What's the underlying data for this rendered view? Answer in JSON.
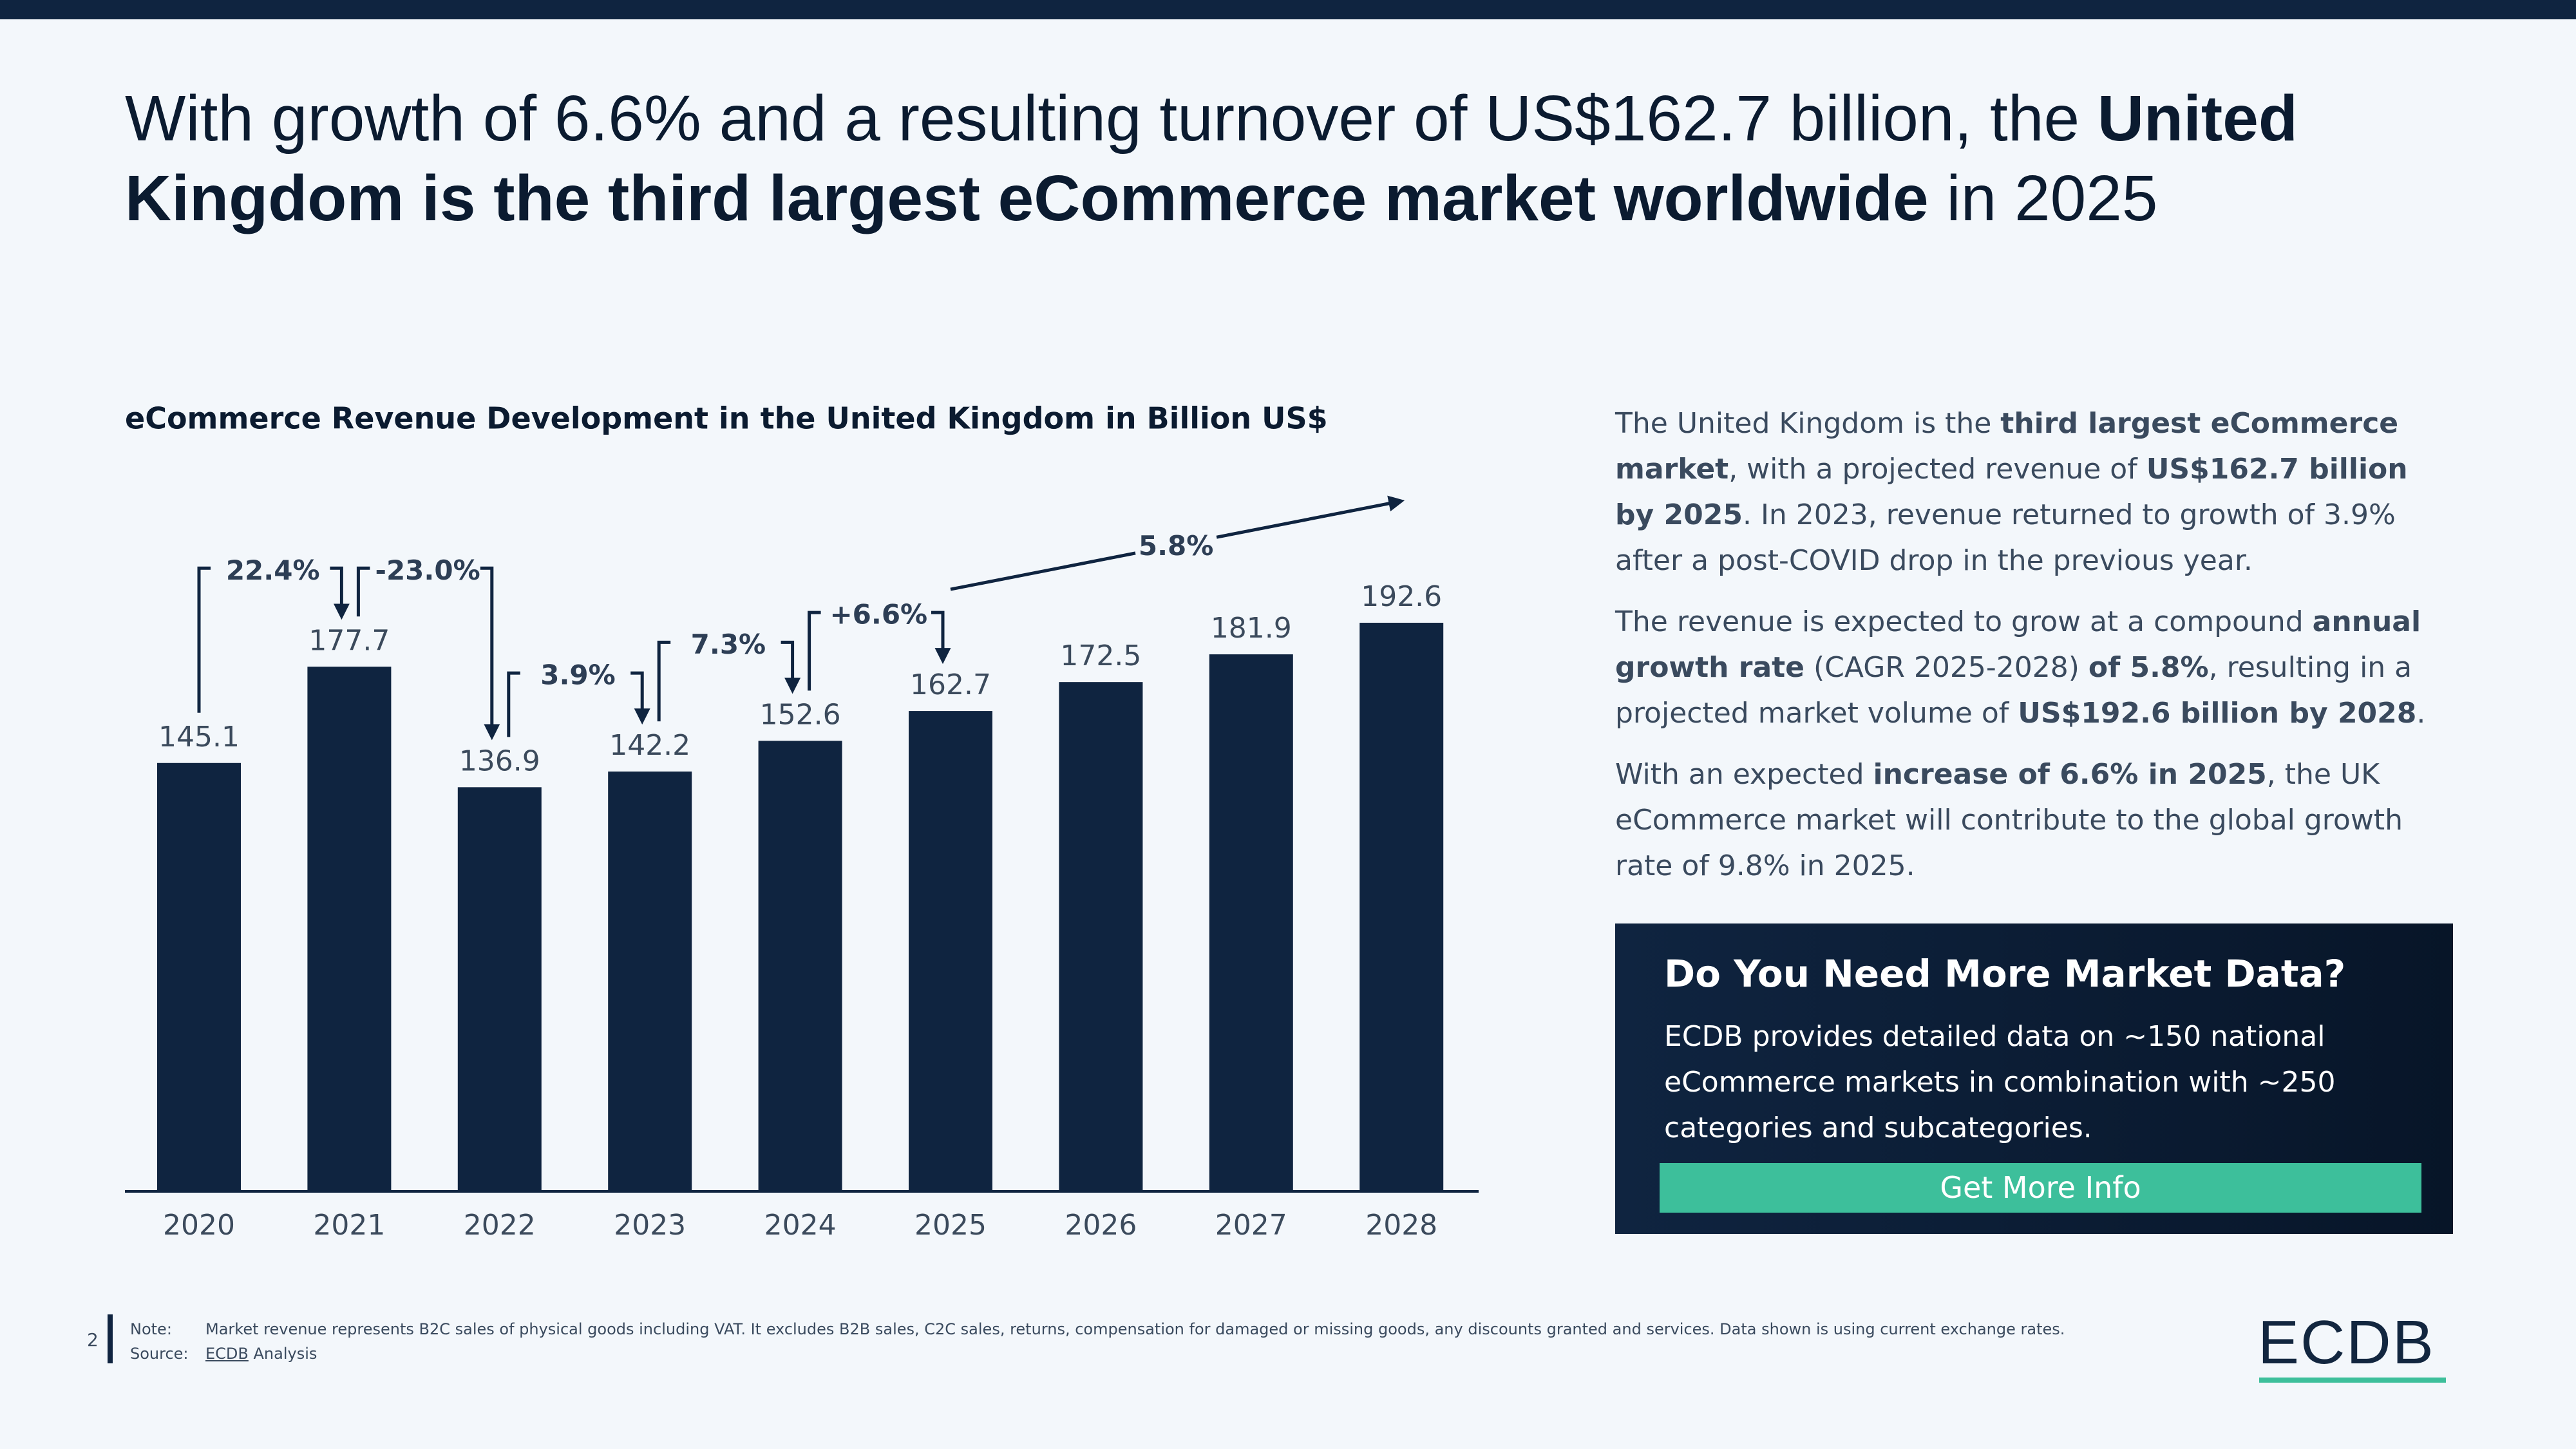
{
  "title": [
    {
      "text": "With growth of 6.6% and a resulting turnover of US$162.7 billion, the ",
      "bold": false
    },
    {
      "text": "United Kingdom is the third largest eCommerce market worldwide",
      "bold": true
    },
    {
      "text": " in 2025",
      "bold": false
    }
  ],
  "chart_data": {
    "type": "bar",
    "title": "eCommerce Revenue Development in the United Kingdom in Billion US$",
    "categories": [
      "2020",
      "2021",
      "2022",
      "2023",
      "2024",
      "2025",
      "2026",
      "2027",
      "2028"
    ],
    "values": [
      145.1,
      177.7,
      136.9,
      142.2,
      152.6,
      162.7,
      172.5,
      181.9,
      192.6
    ],
    "color": "#0f2440",
    "growth_labels": [
      "22.4%",
      "-23.0%",
      "3.9%",
      "7.3%",
      "+6.6%"
    ],
    "cagr_label": "5.8%"
  },
  "description": [
    [
      {
        "text": "The United Kingdom is the ",
        "bold": false
      },
      {
        "text": "third largest eCommerce market",
        "bold": true
      },
      {
        "text": ", with a projected revenue of ",
        "bold": false
      },
      {
        "text": "US$162.7 billion by 2025",
        "bold": true
      },
      {
        "text": ". In 2023, revenue returned to growth of 3.9% after a post-COVID drop in the previous year.",
        "bold": false
      }
    ],
    [
      {
        "text": "The revenue is expected to grow at a compound ",
        "bold": false
      },
      {
        "text": "annual growth rate",
        "bold": true
      },
      {
        "text": " (CAGR 2025-2028) ",
        "bold": false
      },
      {
        "text": "of 5.8%",
        "bold": true
      },
      {
        "text": ", resulting in a projected market volume of ",
        "bold": false
      },
      {
        "text": "US$192.6 billion by 2028",
        "bold": true
      },
      {
        "text": ".",
        "bold": false
      }
    ],
    [
      {
        "text": "With an expected ",
        "bold": false
      },
      {
        "text": "increase of 6.6% in 2025",
        "bold": true
      },
      {
        "text": ", the UK eCommerce market will contribute to the global growth rate of 9.8% in 2025.",
        "bold": false
      }
    ]
  ],
  "cta": {
    "heading": "Do You Need More Market Data?",
    "body": "ECDB provides detailed data on ~150 national eCommerce markets in combination with ~250 categories and subcategories.",
    "button": "Get More Info"
  },
  "footer": {
    "page": "2",
    "note_label": "Note:",
    "note": "Market revenue represents B2C sales of physical goods including VAT. It excludes B2B sales, C2C sales, returns, compensation for damaged or missing goods, any discounts granted and services. Data shown is using current exchange rates.",
    "source_label": "Source:",
    "source": [
      {
        "text": "ECDB",
        "underline": true
      },
      {
        "text": " Analysis",
        "underline": false
      }
    ]
  },
  "logo": "ECDB"
}
